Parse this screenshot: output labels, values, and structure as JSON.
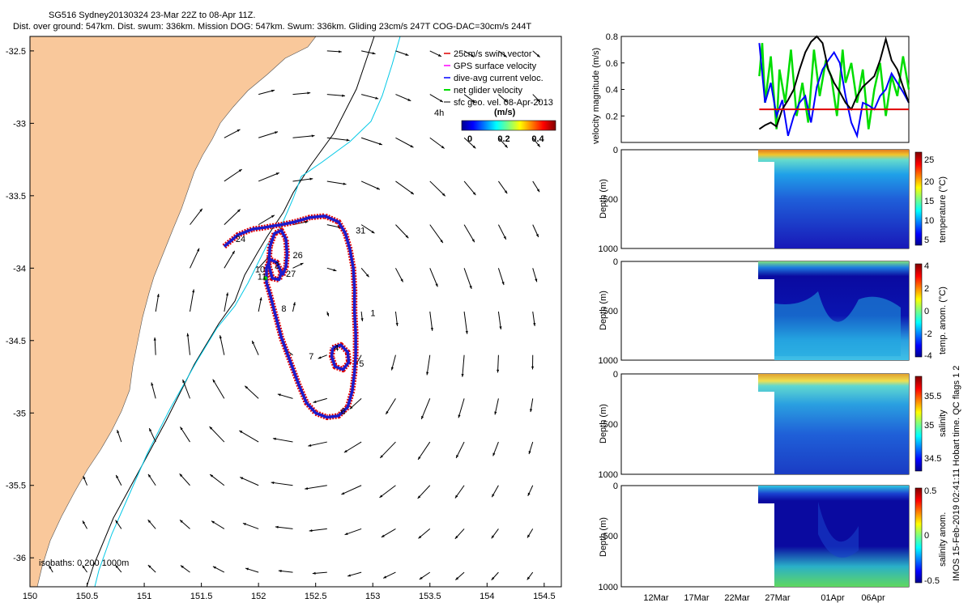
{
  "title_line1": "SG516 Sydney20130324 23-Mar 22Z to 08-Apr 11Z.",
  "title_line2": "Dist. over ground: 547km. Dist. swum: 336km. Mission DOG: 547km. Swum: 336km. Gliding 23cm/s 247T COG-DAC=30cm/s 244T",
  "credit": "IMOS 15-Feb-2019 02:41:11 Hobart time. QC flags 1  2",
  "colors": {
    "land": "#f9c89b",
    "track_red": "#e00000",
    "track_blue": "#1c1ccc",
    "isobath": "#000000",
    "isobath_shallow": "#00c8e6",
    "net_green": "#00dd00"
  },
  "chart_data": [
    {
      "type": "map",
      "x_ticks": [
        "150",
        "150.5",
        "151",
        "151.5",
        "152",
        "152.5",
        "153",
        "153.5",
        "154",
        "154.5"
      ],
      "y_ticks": [
        "-32.5",
        "-33",
        "-33.5",
        "-34",
        "-34.5",
        "-35",
        "-35.5",
        "-36"
      ],
      "xlim": [
        150,
        154.65
      ],
      "ylim": [
        -36.2,
        -32.4
      ],
      "legend": {
        "position": "top-right",
        "entries": [
          {
            "label": "25cm/s swim vector",
            "color": "#e00000"
          },
          {
            "label": "GPS surface velocity",
            "color": "#ff00ff"
          },
          {
            "label": "dive-avg current veloc.",
            "color": "#0000ff"
          },
          {
            "label": "net glider velocity",
            "color": "#00dd00"
          },
          {
            "label": "sfc geo. vel. 08-Apr-2013",
            "color": "#000000"
          }
        ],
        "scale_label": "4h",
        "colorbar_title": "(m/s)",
        "colorbar_ticks": [
          "0",
          "0.2",
          "0.4"
        ]
      },
      "isobaths_label": "isobaths: 0   200   1000m",
      "track": [
        [
          151.7,
          -33.85
        ],
        [
          151.82,
          -33.77
        ],
        [
          151.95,
          -33.73
        ],
        [
          152.05,
          -33.72
        ],
        [
          152.12,
          -33.71
        ],
        [
          152.2,
          -33.7
        ],
        [
          152.32,
          -33.68
        ],
        [
          152.45,
          -33.65
        ],
        [
          152.58,
          -33.64
        ],
        [
          152.7,
          -33.68
        ],
        [
          152.76,
          -33.76
        ],
        [
          152.8,
          -33.87
        ],
        [
          152.83,
          -34.0
        ],
        [
          152.84,
          -34.15
        ],
        [
          152.84,
          -34.3
        ],
        [
          152.85,
          -34.45
        ],
        [
          152.85,
          -34.6
        ],
        [
          152.84,
          -34.72
        ],
        [
          152.82,
          -34.85
        ],
        [
          152.78,
          -34.96
        ],
        [
          152.7,
          -35.02
        ],
        [
          152.6,
          -35.03
        ],
        [
          152.5,
          -35.0
        ],
        [
          152.42,
          -34.93
        ],
        [
          152.35,
          -34.8
        ],
        [
          152.28,
          -34.65
        ],
        [
          152.2,
          -34.48
        ],
        [
          152.14,
          -34.3
        ],
        [
          152.1,
          -34.18
        ],
        [
          152.07,
          -34.1
        ],
        [
          152.07,
          -34.0
        ],
        [
          152.1,
          -33.94
        ],
        [
          152.16,
          -33.96
        ],
        [
          152.2,
          -34.03
        ],
        [
          152.18,
          -34.08
        ],
        [
          152.12,
          -34.07
        ],
        [
          152.09,
          -33.98
        ],
        [
          152.1,
          -33.85
        ],
        [
          152.14,
          -33.76
        ],
        [
          152.2,
          -33.74
        ],
        [
          152.24,
          -33.8
        ],
        [
          152.25,
          -33.9
        ],
        [
          152.24,
          -33.99
        ],
        [
          152.21,
          -34.05
        ]
      ],
      "track_loop": [
        [
          152.65,
          -34.55
        ],
        [
          152.72,
          -34.53
        ],
        [
          152.78,
          -34.58
        ],
        [
          152.79,
          -34.65
        ],
        [
          152.74,
          -34.7
        ],
        [
          152.67,
          -34.68
        ],
        [
          152.64,
          -34.61
        ],
        [
          152.65,
          -34.55
        ]
      ],
      "day_labels": [
        {
          "text": "24",
          "lon": 151.8,
          "lat": -33.82
        },
        {
          "text": "31",
          "lon": 152.85,
          "lat": -33.76
        },
        {
          "text": "26",
          "lon": 152.3,
          "lat": -33.93
        },
        {
          "text": "10",
          "lon": 151.97,
          "lat": -34.03
        },
        {
          "text": "2",
          "lon": 152.14,
          "lat": -34.0
        },
        {
          "text": "27",
          "lon": 152.24,
          "lat": -34.06
        },
        {
          "text": "11",
          "lon": 151.99,
          "lat": -34.08
        },
        {
          "text": "8",
          "lon": 152.2,
          "lat": -34.3
        },
        {
          "text": "1",
          "lon": 152.98,
          "lat": -34.33
        },
        {
          "text": "4",
          "lon": 152.66,
          "lat": -34.57
        },
        {
          "text": "7",
          "lon": 152.44,
          "lat": -34.63
        },
        {
          "text": "5",
          "lon": 152.88,
          "lat": -34.68
        },
        {
          "text": "6",
          "lon": 152.72,
          "lat": -35.01
        }
      ]
    },
    {
      "type": "line",
      "ylabel": "velocity magnitude (m/s)",
      "ylim": [
        0,
        0.8
      ],
      "y_ticks": [
        "0.2",
        "0.4",
        "0.6",
        "0.8"
      ],
      "xlim": [
        0,
        1
      ],
      "threshold": 0.25,
      "series": [
        {
          "color": "#00dd00",
          "x": [
            0.48,
            0.49,
            0.5,
            0.52,
            0.54,
            0.55,
            0.57,
            0.59,
            0.61,
            0.63,
            0.65,
            0.67,
            0.69,
            0.71,
            0.73,
            0.75,
            0.77,
            0.78,
            0.8,
            0.82,
            0.84,
            0.86,
            0.88,
            0.9,
            0.92,
            0.94,
            0.96,
            0.98,
            1.0
          ],
          "values": [
            0.5,
            0.75,
            0.3,
            0.65,
            0.1,
            0.55,
            0.3,
            0.7,
            0.2,
            0.45,
            0.15,
            0.7,
            0.35,
            0.6,
            0.5,
            0.2,
            0.7,
            0.45,
            0.6,
            0.3,
            0.55,
            0.1,
            0.4,
            0.6,
            0.2,
            0.5,
            0.35,
            0.65,
            0.4
          ]
        },
        {
          "color": "#0000ff",
          "x": [
            0.48,
            0.5,
            0.52,
            0.54,
            0.56,
            0.58,
            0.6,
            0.62,
            0.64,
            0.66,
            0.68,
            0.7,
            0.72,
            0.74,
            0.76,
            0.78,
            0.8,
            0.82,
            0.84,
            0.86,
            0.88,
            0.9,
            0.92,
            0.94,
            0.96,
            0.98,
            1.0
          ],
          "values": [
            0.75,
            0.3,
            0.45,
            0.2,
            0.32,
            0.05,
            0.2,
            0.3,
            0.35,
            0.15,
            0.42,
            0.55,
            0.62,
            0.68,
            0.6,
            0.35,
            0.15,
            0.05,
            0.3,
            0.28,
            0.25,
            0.35,
            0.4,
            0.52,
            0.45,
            0.38,
            0.3
          ]
        },
        {
          "color": "#000000",
          "x": [
            0.48,
            0.5,
            0.52,
            0.54,
            0.56,
            0.58,
            0.6,
            0.62,
            0.64,
            0.66,
            0.68,
            0.7,
            0.72,
            0.74,
            0.76,
            0.78,
            0.8,
            0.82,
            0.84,
            0.86,
            0.88,
            0.9,
            0.92,
            0.94,
            0.96,
            0.98,
            1.0
          ],
          "values": [
            0.1,
            0.13,
            0.15,
            0.12,
            0.25,
            0.32,
            0.4,
            0.55,
            0.68,
            0.76,
            0.8,
            0.75,
            0.55,
            0.45,
            0.38,
            0.3,
            0.25,
            0.35,
            0.42,
            0.46,
            0.5,
            0.62,
            0.78,
            0.62,
            0.55,
            0.42,
            0.3
          ]
        }
      ]
    },
    {
      "type": "heatmap",
      "ylabel": "Depth (m)",
      "colorbar_label": "temperature (°C)",
      "colorbar_ticks": [
        "5",
        "10",
        "15",
        "20",
        "25"
      ],
      "y_ticks": [
        "0",
        "500",
        "1000"
      ],
      "ylim": [
        0,
        1000
      ]
    },
    {
      "type": "heatmap",
      "ylabel": "Depth (m)",
      "colorbar_label": "temp. anom. (°C)",
      "colorbar_ticks": [
        "-4",
        "-2",
        "0",
        "2",
        "4"
      ],
      "y_ticks": [
        "0",
        "500",
        "1000"
      ],
      "ylim": [
        0,
        1000
      ]
    },
    {
      "type": "heatmap",
      "ylabel": "Depth (m)",
      "colorbar_label": "salinity",
      "colorbar_ticks": [
        "34.5",
        "35",
        "35.5"
      ],
      "y_ticks": [
        "0",
        "500",
        "1000"
      ],
      "ylim": [
        0,
        1000
      ]
    },
    {
      "type": "heatmap",
      "ylabel": "Depth (m)",
      "colorbar_label": "salinity anom.",
      "colorbar_ticks": [
        "-0.5",
        "0",
        "0.5"
      ],
      "y_ticks": [
        "0",
        "500",
        "1000"
      ],
      "ylim": [
        0,
        1000
      ],
      "x_ticks": [
        "12Mar",
        "17Mar",
        "22Mar",
        "27Mar",
        "01Apr",
        "06Apr"
      ]
    }
  ]
}
